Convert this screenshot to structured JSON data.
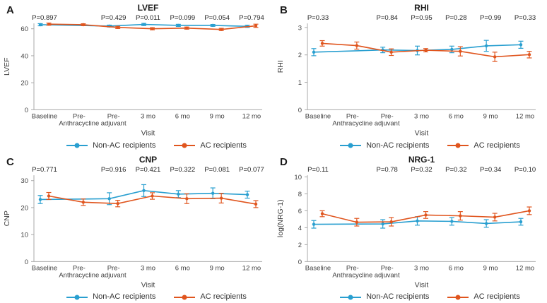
{
  "figure": {
    "background": "#ffffff",
    "colors": {
      "non_ac": "#299FD0",
      "ac": "#E0551E",
      "axis": "#AAAAAA",
      "tick_text": "#3F3F3F",
      "pvalue_text": "#262626",
      "title_text": "#1A1A1A"
    },
    "legend": {
      "non_ac_label": "Non-AC recipients",
      "ac_label": "AC recipients"
    }
  },
  "chart_data": [
    {
      "type": "line",
      "panel_letter": "A",
      "title": "LVEF",
      "ylabel": "LVEF",
      "xlabel": "Visit",
      "categories": [
        "Baseline",
        "Pre-\nAnthracycline",
        "Pre-\nadjuvant",
        "3 mo",
        "6 mo",
        "9 mo",
        "12 mo"
      ],
      "yticks": [
        0,
        20,
        40,
        60
      ],
      "ylim": [
        0,
        64
      ],
      "grid": false,
      "legend_position": "bottom",
      "p_values": [
        {
          "category_index": 0,
          "label": "P=0.897"
        },
        {
          "category_index": 2,
          "label": "P=0.429"
        },
        {
          "category_index": 3,
          "label": "P=0.011"
        },
        {
          "category_index": 4,
          "label": "P=0.099"
        },
        {
          "category_index": 5,
          "label": "P=0.054"
        },
        {
          "category_index": 6,
          "label": "P=0.794"
        }
      ],
      "series": [
        {
          "name": "Non-AC recipients",
          "color": "#299FD0",
          "category_indices": [
            0,
            2,
            3,
            4,
            5,
            6
          ],
          "values": [
            63,
            62,
            63.2,
            62.5,
            62.5,
            61.8
          ],
          "errors": [
            0.8,
            0.7,
            0.8,
            0.8,
            0.7,
            0.8
          ]
        },
        {
          "name": "AC recipients",
          "color": "#E0551E",
          "category_indices": [
            0,
            1,
            2,
            3,
            4,
            5,
            6
          ],
          "values": [
            63.4,
            63,
            61,
            60,
            60.5,
            59.5,
            62.2
          ],
          "errors": [
            0.8,
            0.7,
            0.8,
            0.8,
            0.8,
            0.8,
            1.2
          ]
        }
      ]
    },
    {
      "type": "line",
      "panel_letter": "B",
      "title": "RHI",
      "ylabel": "RHI",
      "xlabel": "Visit",
      "categories": [
        "Baseline",
        "Pre-\nAnthracycline",
        "Pre-\nadjuvant",
        "3 mo",
        "6 mo",
        "9 mo",
        "12 mo"
      ],
      "yticks": [
        0,
        1,
        2,
        3
      ],
      "ylim": [
        0,
        3.15
      ],
      "grid": false,
      "legend_position": "bottom",
      "p_values": [
        {
          "category_index": 0,
          "label": "P=0.33"
        },
        {
          "category_index": 2,
          "label": "P=0.84"
        },
        {
          "category_index": 3,
          "label": "P=0.95"
        },
        {
          "category_index": 4,
          "label": "P=0.28"
        },
        {
          "category_index": 5,
          "label": "P=0.99"
        },
        {
          "category_index": 6,
          "label": "P=0.33"
        }
      ],
      "series": [
        {
          "name": "Non-AC recipients",
          "color": "#299FD0",
          "category_indices": [
            0,
            2,
            3,
            4,
            5,
            6
          ],
          "values": [
            2.1,
            2.18,
            2.16,
            2.2,
            2.33,
            2.37
          ],
          "errors": [
            0.13,
            0.1,
            0.16,
            0.12,
            0.2,
            0.13
          ]
        },
        {
          "name": "AC recipients",
          "color": "#E0551E",
          "category_indices": [
            0,
            1,
            2,
            3,
            4,
            5,
            6
          ],
          "values": [
            2.42,
            2.34,
            2.1,
            2.17,
            2.13,
            1.93,
            2.01
          ],
          "errors": [
            0.1,
            0.13,
            0.12,
            0.06,
            0.17,
            0.17,
            0.12
          ]
        }
      ]
    },
    {
      "type": "line",
      "panel_letter": "C",
      "title": "CNP",
      "ylabel": "CNP",
      "xlabel": "Visit",
      "categories": [
        "Baseline",
        "Pre-\nAnthracycline",
        "Pre-\nadjuvant",
        "3 mo",
        "6 mo",
        "9 mo",
        "12 mo"
      ],
      "yticks": [
        0,
        10,
        20,
        30
      ],
      "ylim": [
        0,
        32
      ],
      "grid": false,
      "legend_position": "bottom",
      "p_values": [
        {
          "category_index": 0,
          "label": "P=0.771"
        },
        {
          "category_index": 2,
          "label": "P=0.916"
        },
        {
          "category_index": 3,
          "label": "P=0.421"
        },
        {
          "category_index": 4,
          "label": "P=0.322"
        },
        {
          "category_index": 5,
          "label": "P=0.081"
        },
        {
          "category_index": 6,
          "label": "P=0.077"
        }
      ],
      "series": [
        {
          "name": "Non-AC recipients",
          "color": "#299FD0",
          "category_indices": [
            0,
            2,
            3,
            4,
            5,
            6
          ],
          "values": [
            23,
            23.3,
            26.3,
            25,
            25.3,
            24.8
          ],
          "errors": [
            1.5,
            2.2,
            2.2,
            1.3,
            2.0,
            1.3
          ]
        },
        {
          "name": "AC recipients",
          "color": "#E0551E",
          "category_indices": [
            0,
            1,
            2,
            3,
            4,
            5,
            6
          ],
          "values": [
            24.3,
            22,
            21.5,
            24.3,
            23.3,
            23.5,
            21.3
          ],
          "errors": [
            1.3,
            1.2,
            1.2,
            1.2,
            1.8,
            1.8,
            1.3
          ]
        }
      ]
    },
    {
      "type": "line",
      "panel_letter": "D",
      "title": "NRG-1",
      "ylabel": "log(NRG-1)",
      "xlabel": "Visit",
      "categories": [
        "Baseline",
        "Pre-\nAnthracycline",
        "Pre-\nadjuvant",
        "3 mo",
        "6 mo",
        "9 mo",
        "12 mo"
      ],
      "yticks": [
        0,
        2,
        4,
        6,
        8,
        10
      ],
      "ylim": [
        0,
        10.2
      ],
      "grid": false,
      "legend_position": "bottom",
      "p_values": [
        {
          "category_index": 0,
          "label": "P=0.11"
        },
        {
          "category_index": 2,
          "label": "P=0.78"
        },
        {
          "category_index": 3,
          "label": "P=0.32"
        },
        {
          "category_index": 4,
          "label": "P=0.32"
        },
        {
          "category_index": 5,
          "label": "P=0.34"
        },
        {
          "category_index": 6,
          "label": "P=0.10"
        }
      ],
      "series": [
        {
          "name": "Non-AC recipients",
          "color": "#299FD0",
          "category_indices": [
            0,
            2,
            3,
            4,
            5,
            6
          ],
          "values": [
            4.4,
            4.45,
            4.8,
            4.75,
            4.5,
            4.7
          ],
          "errors": [
            0.45,
            0.5,
            0.5,
            0.45,
            0.45,
            0.4
          ]
        },
        {
          "name": "AC recipients",
          "color": "#E0551E",
          "category_indices": [
            0,
            1,
            2,
            3,
            4,
            5,
            6
          ],
          "values": [
            5.65,
            4.65,
            4.7,
            5.5,
            5.4,
            5.25,
            6.0
          ],
          "errors": [
            0.35,
            0.45,
            0.5,
            0.4,
            0.5,
            0.45,
            0.45
          ]
        }
      ]
    }
  ]
}
